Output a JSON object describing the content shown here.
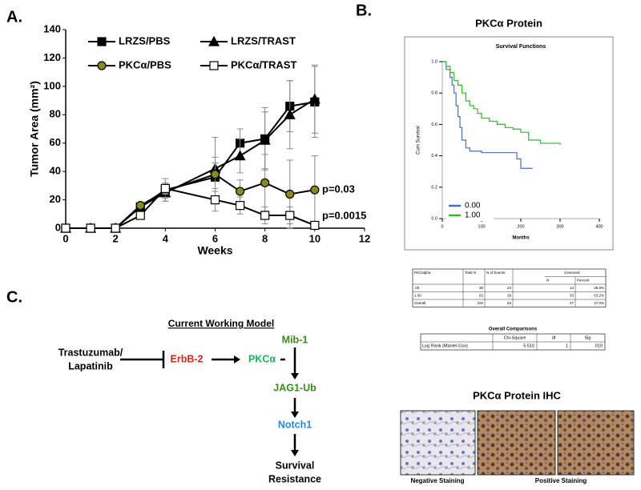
{
  "panel_labels": [
    "A.",
    "B.",
    "C."
  ],
  "chart_data": [
    {
      "type": "line",
      "xlabel": "Weeks",
      "ylabel": "Tumor Area (mm²)",
      "x": [
        0,
        1,
        2,
        3,
        4,
        6,
        7,
        8,
        9,
        10
      ],
      "xlim": [
        0,
        12
      ],
      "xticks": [
        0,
        2,
        4,
        6,
        8,
        10,
        12
      ],
      "ylim": [
        0,
        140
      ],
      "yticks": [
        0,
        20,
        40,
        60,
        80,
        100,
        120,
        140
      ],
      "series": [
        {
          "name": "LRZS/PBS",
          "color": "#000000",
          "marker": "square",
          "marker_fill": "#000000",
          "values": [
            0,
            0,
            0,
            15,
            27,
            36,
            60,
            63,
            86,
            89
          ],
          "errors": [
            0,
            0,
            0,
            2,
            8,
            10,
            10,
            22,
            18,
            25
          ]
        },
        {
          "name": "LRZS/TRAST",
          "color": "#000000",
          "marker": "triangle",
          "marker_fill": "#000000",
          "values": [
            0,
            0,
            0,
            15,
            25,
            42,
            51,
            62,
            80,
            91
          ],
          "errors": [
            0,
            0,
            0,
            2,
            6,
            22,
            12,
            20,
            24,
            24
          ]
        },
        {
          "name": "PKCα/PBS",
          "color": "#000000",
          "marker": "circle",
          "marker_fill": "#8a8a1e",
          "values": [
            0,
            0,
            0,
            16,
            26,
            38,
            26,
            32,
            24,
            27
          ],
          "errors": [
            0,
            0,
            0,
            2,
            5,
            12,
            8,
            20,
            24,
            24
          ]
        },
        {
          "name": "PKCα/TRAST",
          "color": "#000000",
          "marker": "square",
          "marker_fill": "#ffffff",
          "values": [
            0,
            0,
            0,
            9,
            28,
            20,
            16,
            9,
            9,
            2
          ],
          "errors": [
            0,
            0,
            0,
            2,
            4,
            8,
            6,
            6,
            6,
            2
          ]
        }
      ],
      "annotations": [
        "p=0.03",
        "p=0.0015"
      ]
    },
    {
      "type": "line",
      "drawstyle": "steps-post",
      "title": "PKCα Protein",
      "subtitle": "Survival Functions",
      "xlabel": "Months",
      "ylabel": "Cum Survival",
      "xlim": [
        0,
        400
      ],
      "xticks": [
        0,
        100,
        200,
        300,
        400
      ],
      "ylim": [
        0,
        1
      ],
      "yticks": [
        {
          "value": 0,
          "label": "0.0"
        },
        0.2,
        0.4,
        0.6,
        0.8,
        {
          "value": 1,
          "label": "1.0"
        }
      ],
      "legend": "lower left",
      "series": [
        {
          "name": "0.00",
          "color": "#4a6fb5",
          "x": [
            0,
            10,
            20,
            25,
            30,
            35,
            40,
            45,
            50,
            60,
            70,
            100,
            130,
            150,
            180,
            190,
            200,
            230
          ],
          "values": [
            1,
            0.95,
            0.9,
            0.85,
            0.8,
            0.72,
            0.65,
            0.58,
            0.5,
            0.45,
            0.43,
            0.42,
            0.42,
            0.42,
            0.42,
            0.38,
            0.32,
            0.32
          ]
        },
        {
          "name": "1.00",
          "color": "#2db82d",
          "x": [
            0,
            10,
            20,
            30,
            40,
            50,
            60,
            70,
            80,
            90,
            100,
            120,
            140,
            160,
            180,
            200,
            220,
            250,
            300
          ],
          "values": [
            1,
            0.97,
            0.93,
            0.88,
            0.85,
            0.8,
            0.75,
            0.72,
            0.7,
            0.67,
            0.64,
            0.62,
            0.6,
            0.58,
            0.57,
            0.55,
            0.5,
            0.48,
            0.47
          ]
        }
      ]
    }
  ],
  "case_summary": {
    "header": [
      "PKCalpha",
      "Total N",
      "N of Events",
      "Censored"
    ],
    "subheader": [
      "N",
      "Percent"
    ],
    "rows": [
      [
        ".00",
        "38",
        "24",
        "14",
        "36.8%"
      ],
      [
        "1.00",
        "62",
        "29",
        "33",
        "53.2%"
      ],
      [
        "Overall",
        "100",
        "53",
        "47",
        "47.0%"
      ]
    ]
  },
  "comparisons": {
    "title": "Overall Comparisons",
    "header": [
      "Chi-Square",
      "df",
      "Sig"
    ],
    "rows": [
      [
        "Log Rank (Mantel-Cox)",
        "5.510",
        "1",
        ".019"
      ]
    ]
  },
  "diagram": {
    "title": "Current Working Model",
    "nodes": [
      {
        "lines": [
          "Trastuzumab/",
          "Lapatinib"
        ]
      },
      {
        "lines": [
          "ErbB-2"
        ]
      },
      {
        "lines": [
          "PKCα"
        ]
      },
      {
        "lines": [
          "Mib-1"
        ]
      },
      {
        "lines": [
          "JAG1-Ub"
        ]
      },
      {
        "lines": [
          "Notch1"
        ]
      },
      {
        "lines": [
          "Survival",
          "Resistance"
        ]
      }
    ]
  },
  "ihc": {
    "title": "PKCα Protein IHC",
    "captions": [
      "Negative Staining",
      "Positive Staining"
    ]
  }
}
